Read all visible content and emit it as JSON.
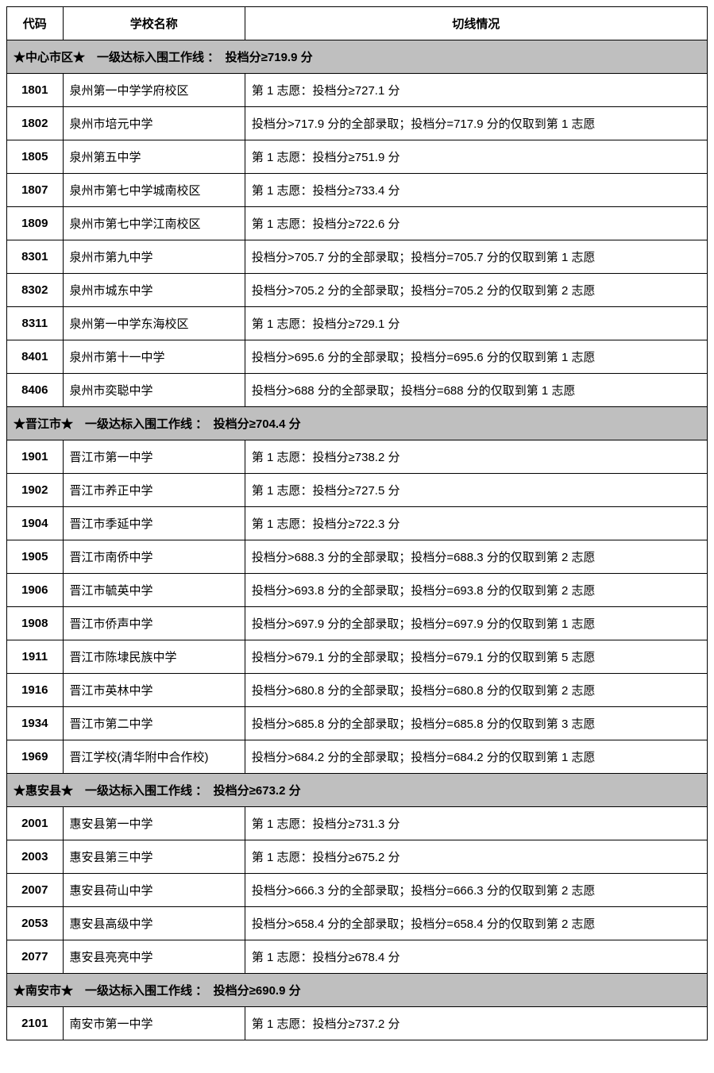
{
  "colors": {
    "section_bg": "#bfbfbf",
    "border": "#000000",
    "text": "#000000",
    "background": "#ffffff"
  },
  "table": {
    "headers": {
      "code": "代码",
      "school": "学校名称",
      "detail": "切线情况"
    },
    "sections": [
      {
        "title": "★中心市区★　一级达标入围工作线 ：　投档分≥719.9 分",
        "rows": [
          {
            "code": "1801",
            "school": "泉州第一中学学府校区",
            "detail": "第 1 志愿：投档分≥727.1 分"
          },
          {
            "code": "1802",
            "school": "泉州市培元中学",
            "detail": "投档分>717.9 分的全部录取；投档分=717.9 分的仅取到第 1 志愿"
          },
          {
            "code": "1805",
            "school": "泉州第五中学",
            "detail": "第 1 志愿：投档分≥751.9 分"
          },
          {
            "code": "1807",
            "school": "泉州市第七中学城南校区",
            "detail": "第 1 志愿：投档分≥733.4 分"
          },
          {
            "code": "1809",
            "school": "泉州市第七中学江南校区",
            "detail": "第 1 志愿：投档分≥722.6 分"
          },
          {
            "code": "8301",
            "school": "泉州市第九中学",
            "detail": "投档分>705.7 分的全部录取；投档分=705.7 分的仅取到第 1 志愿"
          },
          {
            "code": "8302",
            "school": "泉州市城东中学",
            "detail": "投档分>705.2 分的全部录取；投档分=705.2 分的仅取到第 2 志愿"
          },
          {
            "code": "8311",
            "school": "泉州第一中学东海校区",
            "detail": "第 1 志愿：投档分≥729.1 分"
          },
          {
            "code": "8401",
            "school": "泉州市第十一中学",
            "detail": "投档分>695.6 分的全部录取；投档分=695.6 分的仅取到第 1 志愿"
          },
          {
            "code": "8406",
            "school": "泉州市奕聪中学",
            "detail": "投档分>688 分的全部录取；投档分=688 分的仅取到第 1 志愿"
          }
        ]
      },
      {
        "title": "★晋江市★　一级达标入围工作线 ：　投档分≥704.4 分",
        "rows": [
          {
            "code": "1901",
            "school": "晋江市第一中学",
            "detail": "第 1 志愿：投档分≥738.2 分"
          },
          {
            "code": "1902",
            "school": "晋江市养正中学",
            "detail": "第 1 志愿：投档分≥727.5 分"
          },
          {
            "code": "1904",
            "school": "晋江市季延中学",
            "detail": "第 1 志愿：投档分≥722.3 分"
          },
          {
            "code": "1905",
            "school": "晋江市南侨中学",
            "detail": "投档分>688.3 分的全部录取；投档分=688.3 分的仅取到第 2 志愿"
          },
          {
            "code": "1906",
            "school": "晋江市毓英中学",
            "detail": "投档分>693.8 分的全部录取；投档分=693.8 分的仅取到第 2 志愿"
          },
          {
            "code": "1908",
            "school": "晋江市侨声中学",
            "detail": "投档分>697.9 分的全部录取；投档分=697.9 分的仅取到第 1 志愿"
          },
          {
            "code": "1911",
            "school": "晋江市陈埭民族中学",
            "detail": "投档分>679.1 分的全部录取；投档分=679.1 分的仅取到第 5 志愿"
          },
          {
            "code": "1916",
            "school": "晋江市英林中学",
            "detail": "投档分>680.8 分的全部录取；投档分=680.8 分的仅取到第 2 志愿"
          },
          {
            "code": "1934",
            "school": "晋江市第二中学",
            "detail": "投档分>685.8 分的全部录取；投档分=685.8 分的仅取到第 3 志愿"
          },
          {
            "code": "1969",
            "school": "晋江学校(清华附中合作校)",
            "detail": "投档分>684.2 分的全部录取；投档分=684.2 分的仅取到第 1 志愿"
          }
        ]
      },
      {
        "title": "★惠安县★　一级达标入围工作线 ：　投档分≥673.2 分",
        "rows": [
          {
            "code": "2001",
            "school": "惠安县第一中学",
            "detail": "第 1 志愿：投档分≥731.3 分"
          },
          {
            "code": "2003",
            "school": "惠安县第三中学",
            "detail": "第 1 志愿：投档分≥675.2 分"
          },
          {
            "code": "2007",
            "school": "惠安县荷山中学",
            "detail": "投档分>666.3 分的全部录取；投档分=666.3 分的仅取到第 2 志愿"
          },
          {
            "code": "2053",
            "school": "惠安县高级中学",
            "detail": "投档分>658.4 分的全部录取；投档分=658.4 分的仅取到第 2 志愿"
          },
          {
            "code": "2077",
            "school": "惠安县亮亮中学",
            "detail": "第 1 志愿：投档分≥678.4 分"
          }
        ]
      },
      {
        "title": "★南安市★　一级达标入围工作线 ：　投档分≥690.9 分",
        "rows": [
          {
            "code": "2101",
            "school": "南安市第一中学",
            "detail": "第 1 志愿：投档分≥737.2 分"
          }
        ]
      }
    ]
  }
}
